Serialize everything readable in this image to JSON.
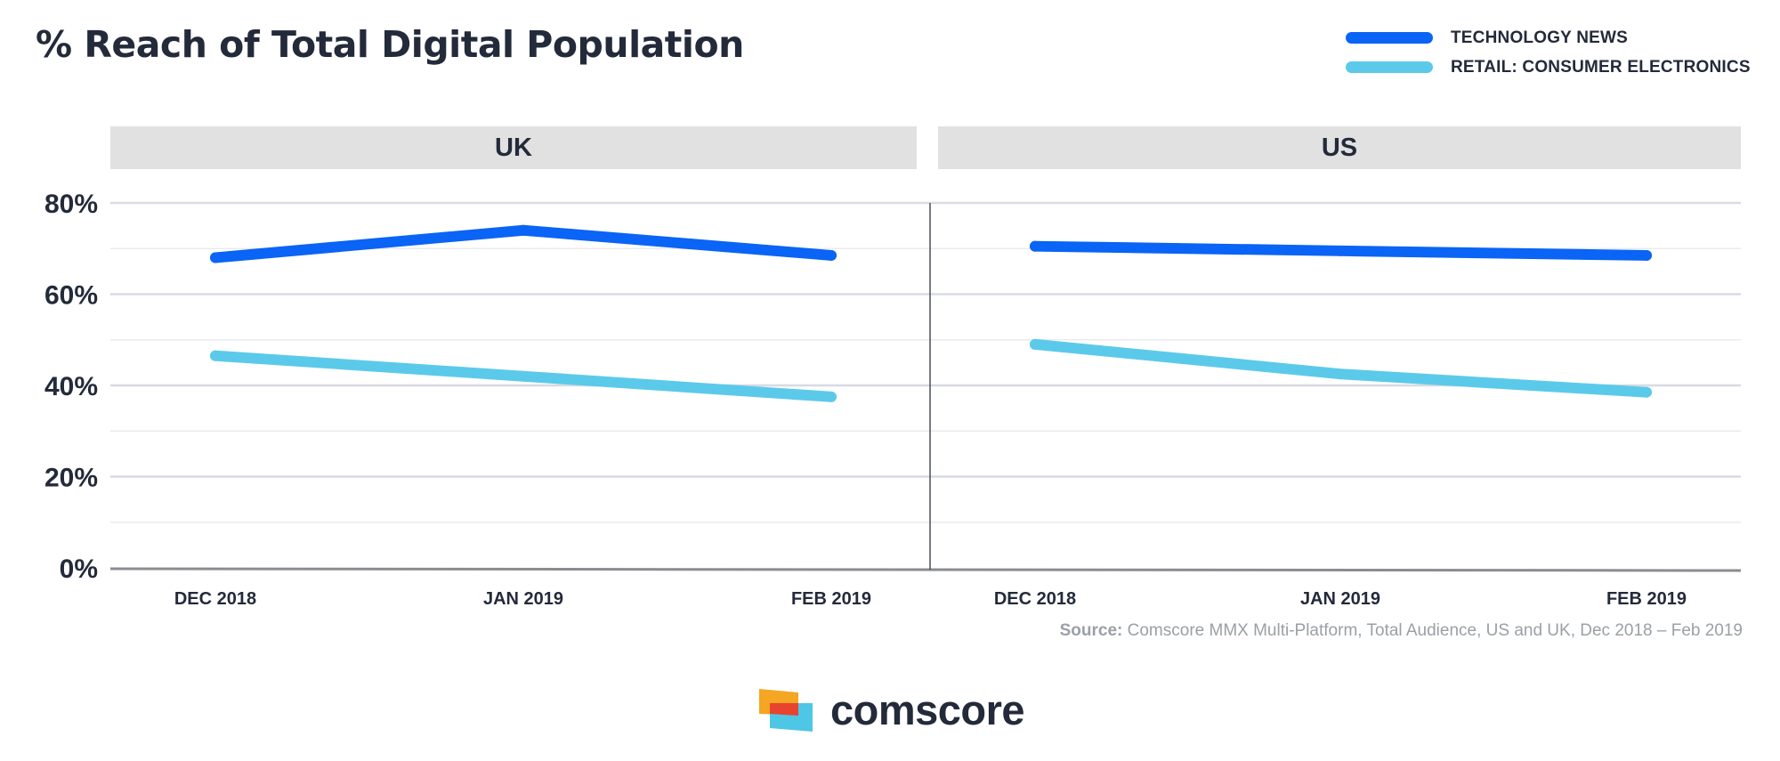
{
  "title": "% Reach of Total Digital Population",
  "legend": [
    {
      "label": "TECHNOLOGY NEWS",
      "color": "#0a64f5"
    },
    {
      "label": "RETAIL: CONSUMER ELECTRONICS",
      "color": "#5bcaea"
    }
  ],
  "source": {
    "prefix": "Source:",
    "text": " Comscore MMX Multi-Platform, Total Audience, US and UK, Dec 2018 – Feb 2019"
  },
  "brand": {
    "name": "comscore"
  },
  "chart_data": [
    {
      "type": "line",
      "panel": "UK",
      "categories": [
        "DEC 2018",
        "JAN 2019",
        "FEB 2019"
      ],
      "ylim": [
        0,
        80
      ],
      "yticks": [
        "0%",
        "20%",
        "40%",
        "60%",
        "80%"
      ],
      "grid": true,
      "series": [
        {
          "name": "TECHNOLOGY NEWS",
          "values": [
            68,
            74,
            68.5
          ],
          "color": "#0a64f5"
        },
        {
          "name": "RETAIL: CONSUMER ELECTRONICS",
          "values": [
            46.5,
            42,
            37.5
          ],
          "color": "#5bcaea"
        }
      ]
    },
    {
      "type": "line",
      "panel": "US",
      "categories": [
        "DEC 2018",
        "JAN 2019",
        "FEB 2019"
      ],
      "ylim": [
        0,
        80
      ],
      "yticks": [
        "0%",
        "20%",
        "40%",
        "60%",
        "80%"
      ],
      "grid": true,
      "series": [
        {
          "name": "TECHNOLOGY NEWS",
          "values": [
            70.5,
            69.5,
            68.5
          ],
          "color": "#0a64f5"
        },
        {
          "name": "RETAIL: CONSUMER ELECTRONICS",
          "values": [
            49,
            42.5,
            38.5
          ],
          "color": "#5bcaea"
        }
      ]
    }
  ]
}
